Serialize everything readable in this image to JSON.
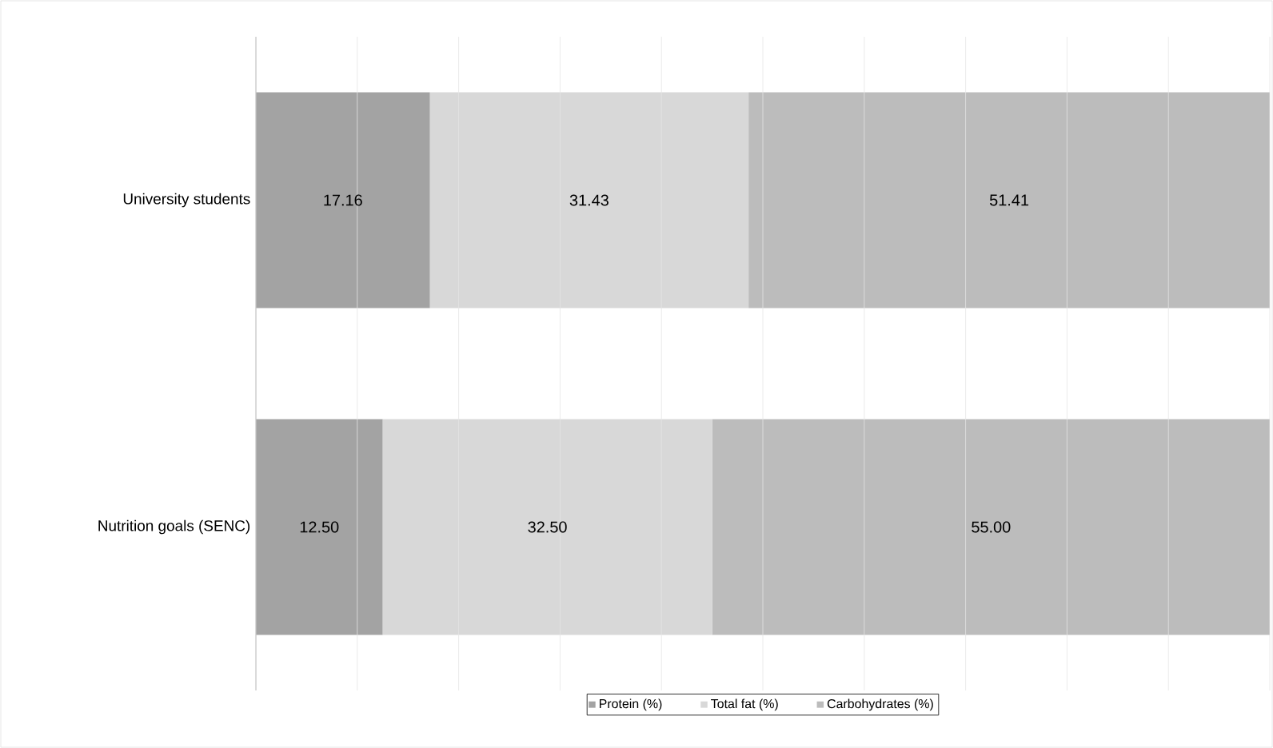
{
  "chart_data": {
    "type": "bar",
    "orientation": "horizontal",
    "stacked": true,
    "categories": [
      "University students",
      "Nutrition goals (SENC)"
    ],
    "series": [
      {
        "name": "Protein (%)",
        "color": "#a3a3a3",
        "values": [
          17.16,
          12.5
        ],
        "value_labels": [
          "17.16",
          "12.50"
        ]
      },
      {
        "name": "Total fat (%)",
        "color": "#d8d8d8",
        "values": [
          31.43,
          32.5
        ],
        "value_labels": [
          "31.43",
          "32.50"
        ]
      },
      {
        "name": "Carbohydrates (%)",
        "color": "#bcbcbc",
        "values": [
          51.41,
          55.0
        ],
        "value_labels": [
          "51.41",
          "55.00"
        ]
      }
    ],
    "xlim": [
      0,
      100
    ],
    "xticks": [
      {
        "value": 0,
        "label": null
      },
      {
        "value": 10,
        "label": null
      },
      {
        "value": 20,
        "label": null
      },
      {
        "value": 30,
        "label": null
      },
      {
        "value": 40,
        "label": null
      },
      {
        "value": 50,
        "label": null
      },
      {
        "value": 60,
        "label": null
      },
      {
        "value": 70,
        "label": null
      },
      {
        "value": 80,
        "label": null
      },
      {
        "value": 90,
        "label": null
      },
      {
        "value": 100,
        "label": null
      }
    ],
    "tick_labels": "y",
    "grid": "x",
    "legend": "bottom"
  }
}
